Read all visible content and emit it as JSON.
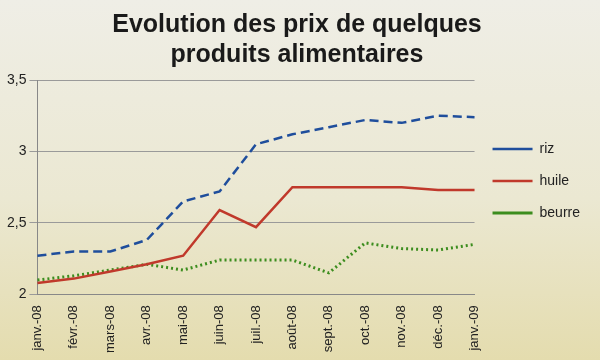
{
  "chart_data": {
    "type": "line",
    "title": "Evolution des prix de quelques produits alimentaires",
    "categories": [
      "janv.-08",
      "févr.-08",
      "mars-08",
      "avr.-08",
      "mai-08",
      "juin-08",
      "juil.-08",
      "août-08",
      "sept.-08",
      "oct.-08",
      "nov.-08",
      "déc.-08",
      "janv.-09"
    ],
    "series": [
      {
        "name": "riz",
        "color": "#1f4e9c",
        "line_style": "dashed",
        "marker": "none",
        "values": [
          2.27,
          2.3,
          2.3,
          2.38,
          2.65,
          2.72,
          3.05,
          3.12,
          3.17,
          3.22,
          3.2,
          3.25,
          3.24
        ]
      },
      {
        "name": "huile",
        "color": "#c0392b",
        "line_style": "solid",
        "marker": "none",
        "values": [
          2.08,
          2.11,
          2.16,
          2.21,
          2.27,
          2.59,
          2.47,
          2.75,
          2.75,
          2.75,
          2.75,
          2.73,
          2.73
        ]
      },
      {
        "name": "beurre",
        "color": "#3c8d1e",
        "line_style": "dotted",
        "marker": "none",
        "values": [
          2.1,
          2.13,
          2.17,
          2.21,
          2.17,
          2.24,
          2.24,
          2.24,
          2.15,
          2.36,
          2.32,
          2.31,
          2.35
        ]
      }
    ],
    "ylim": [
      2,
      3.5
    ],
    "yticks": [
      2,
      {
        "value": 2.5,
        "label": "2,5"
      },
      3,
      {
        "value": 3.5,
        "label": "3,5"
      }
    ],
    "grid": true,
    "legend": "right"
  }
}
